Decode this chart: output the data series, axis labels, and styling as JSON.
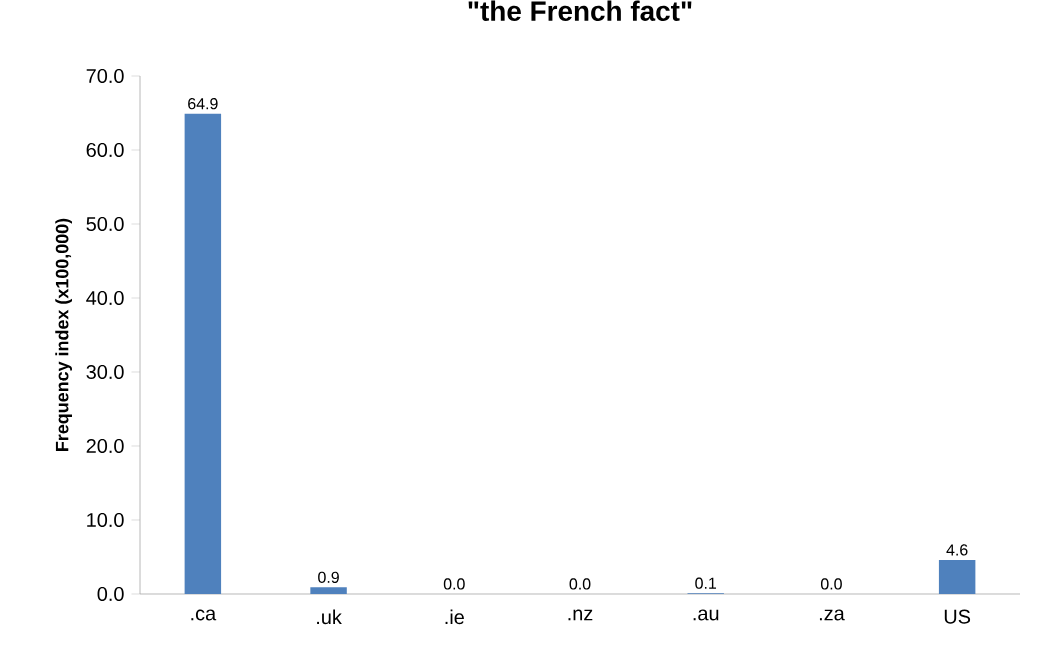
{
  "chart_data": {
    "type": "bar",
    "title": "\"the French fact\"",
    "ylabel": "Frequency index (x100,000)",
    "categories": [
      ".ca",
      ".uk",
      ".ie",
      ".nz",
      ".au",
      ".za",
      "US"
    ],
    "values": [
      64.9,
      0.9,
      0.0,
      0.0,
      0.1,
      0.0,
      4.6
    ],
    "value_labels": [
      "64.9",
      "0.9",
      "0.0",
      "0.0",
      "0.1",
      "0.0",
      "4.6"
    ],
    "color": "#4f81bd",
    "ylim": [
      0,
      70
    ],
    "yticks": [
      {
        "value": 0,
        "label": "0.0"
      },
      {
        "value": 10,
        "label": "10.0"
      },
      {
        "value": 20,
        "label": "20.0"
      },
      {
        "value": 30,
        "label": "30.0"
      },
      {
        "value": 40,
        "label": "40.0"
      },
      {
        "value": 50,
        "label": "50.0"
      },
      {
        "value": 60,
        "label": "60.0"
      },
      {
        "value": 70,
        "label": "70.0"
      }
    ]
  }
}
